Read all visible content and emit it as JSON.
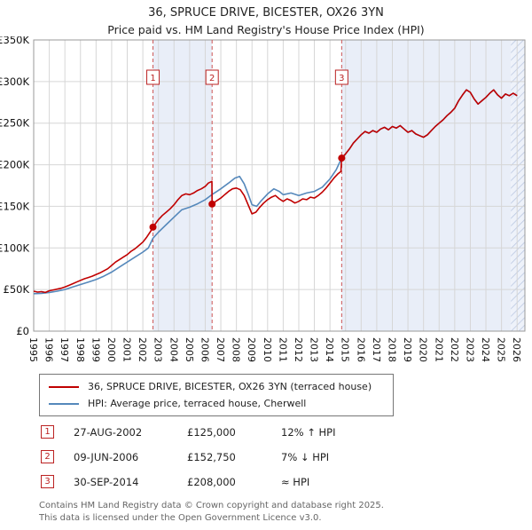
{
  "title": "36, SPRUCE DRIVE, BICESTER, OX26 3YN",
  "subtitle": "Price paid vs. HM Land Registry's House Price Index (HPI)",
  "legend": {
    "entries": [
      {
        "label": "36, SPRUCE DRIVE, BICESTER, OX26 3YN (terraced house)",
        "color": "#c00000"
      },
      {
        "label": "HPI: Average price, terraced house, Cherwell",
        "color": "#5588bb"
      }
    ]
  },
  "transactions": [
    {
      "num": "1",
      "date": "27-AUG-2002",
      "price": "£125,000",
      "hpi": "12% ↑ HPI"
    },
    {
      "num": "2",
      "date": "09-JUN-2006",
      "price": "£152,750",
      "hpi": "7% ↓ HPI"
    },
    {
      "num": "3",
      "date": "30-SEP-2014",
      "price": "£208,000",
      "hpi": "≈ HPI"
    }
  ],
  "footer": [
    "Contains HM Land Registry data © Crown copyright and database right 2025.",
    "This data is licensed under the Open Government Licence v3.0."
  ],
  "chart_data": {
    "type": "line",
    "title": "Price paid vs. HPI",
    "xlabel": "Year",
    "ylabel": "Price",
    "xlim": [
      1995,
      2026.5
    ],
    "ylim": [
      0,
      350000
    ],
    "grid": true,
    "legend_position": "below",
    "x_ticks": [
      1995,
      1996,
      1997,
      1998,
      1999,
      2000,
      2001,
      2002,
      2003,
      2004,
      2005,
      2006,
      2007,
      2008,
      2009,
      2010,
      2011,
      2012,
      2013,
      2014,
      2015,
      2016,
      2017,
      2018,
      2019,
      2020,
      2021,
      2022,
      2023,
      2024,
      2025,
      2026
    ],
    "y_ticks": [
      {
        "v": 0,
        "label": "£0"
      },
      {
        "v": 50000,
        "label": "£50K"
      },
      {
        "v": 100000,
        "label": "£100K"
      },
      {
        "v": 150000,
        "label": "£150K"
      },
      {
        "v": 200000,
        "label": "£200K"
      },
      {
        "v": 250000,
        "label": "£250K"
      },
      {
        "v": 300000,
        "label": "£300K"
      },
      {
        "v": 350000,
        "label": "£350K"
      }
    ],
    "bands": [
      {
        "x0": 2002.65,
        "x1": 2006.44,
        "color": "#e9eef8"
      },
      {
        "x0": 2014.75,
        "x1": 2025.6,
        "color": "#e9eef8"
      }
    ],
    "hatch_band": {
      "x0": 2025.6,
      "x1": 2026.5
    },
    "markers": [
      {
        "n": "1",
        "x": 2002.65,
        "y": 125000
      },
      {
        "n": "2",
        "x": 2006.44,
        "y": 152750
      },
      {
        "n": "3",
        "x": 2014.75,
        "y": 208000
      }
    ],
    "marker_line_color": "#cc5555",
    "series": [
      {
        "name": "HPI: Average price, terraced house, Cherwell",
        "color": "#5588bb",
        "points": [
          [
            1995.0,
            45000
          ],
          [
            1995.5,
            45500
          ],
          [
            1996.0,
            46500
          ],
          [
            1996.5,
            48000
          ],
          [
            1997.0,
            50000
          ],
          [
            1997.5,
            53000
          ],
          [
            1998.0,
            56000
          ],
          [
            1998.5,
            59000
          ],
          [
            1999.0,
            62000
          ],
          [
            1999.5,
            66000
          ],
          [
            2000.0,
            71000
          ],
          [
            2000.5,
            77000
          ],
          [
            2001.0,
            83000
          ],
          [
            2001.5,
            89000
          ],
          [
            2002.0,
            95000
          ],
          [
            2002.35,
            100000
          ],
          [
            2002.65,
            111600
          ],
          [
            2003.0,
            119000
          ],
          [
            2003.5,
            128000
          ],
          [
            2004.0,
            137000
          ],
          [
            2004.5,
            146000
          ],
          [
            2005.0,
            149000
          ],
          [
            2005.5,
            153000
          ],
          [
            2006.0,
            158000
          ],
          [
            2006.44,
            164200
          ],
          [
            2006.75,
            168000
          ],
          [
            2007.0,
            171000
          ],
          [
            2007.5,
            178000
          ],
          [
            2007.9,
            184000
          ],
          [
            2008.2,
            186000
          ],
          [
            2008.5,
            177000
          ],
          [
            2008.75,
            165000
          ],
          [
            2009.0,
            152000
          ],
          [
            2009.3,
            150000
          ],
          [
            2009.6,
            157000
          ],
          [
            2010.0,
            165000
          ],
          [
            2010.4,
            171000
          ],
          [
            2010.75,
            168000
          ],
          [
            2011.0,
            164000
          ],
          [
            2011.5,
            166000
          ],
          [
            2012.0,
            163000
          ],
          [
            2012.5,
            166000
          ],
          [
            2013.0,
            168000
          ],
          [
            2013.5,
            173000
          ],
          [
            2014.0,
            183000
          ],
          [
            2014.4,
            194000
          ],
          [
            2014.75,
            208000
          ],
          [
            2015.0,
            213000
          ],
          [
            2015.25,
            219000
          ],
          [
            2015.5,
            226000
          ],
          [
            2015.75,
            231000
          ],
          [
            2016.0,
            236000
          ],
          [
            2016.25,
            240000
          ],
          [
            2016.5,
            238000
          ],
          [
            2016.75,
            241000
          ],
          [
            2017.0,
            239000
          ],
          [
            2017.25,
            243000
          ],
          [
            2017.5,
            245000
          ],
          [
            2017.75,
            242000
          ],
          [
            2018.0,
            246000
          ],
          [
            2018.25,
            244000
          ],
          [
            2018.5,
            247000
          ],
          [
            2018.75,
            243000
          ],
          [
            2019.0,
            239000
          ],
          [
            2019.25,
            241000
          ],
          [
            2019.5,
            237000
          ],
          [
            2019.75,
            235000
          ],
          [
            2020.0,
            233000
          ],
          [
            2020.25,
            236000
          ],
          [
            2020.5,
            241000
          ],
          [
            2020.75,
            246000
          ],
          [
            2021.0,
            250000
          ],
          [
            2021.25,
            254000
          ],
          [
            2021.5,
            259000
          ],
          [
            2021.75,
            263000
          ],
          [
            2022.0,
            268000
          ],
          [
            2022.25,
            277000
          ],
          [
            2022.5,
            284000
          ],
          [
            2022.75,
            290000
          ],
          [
            2023.0,
            287000
          ],
          [
            2023.25,
            279000
          ],
          [
            2023.5,
            273000
          ],
          [
            2023.75,
            277000
          ],
          [
            2024.0,
            281000
          ],
          [
            2024.25,
            286000
          ],
          [
            2024.5,
            290000
          ],
          [
            2024.75,
            284000
          ],
          [
            2025.0,
            280000
          ],
          [
            2025.25,
            285000
          ],
          [
            2025.5,
            283000
          ],
          [
            2025.75,
            286000
          ],
          [
            2026.0,
            283000
          ]
        ]
      },
      {
        "name": "36, SPRUCE DRIVE, BICESTER, OX26 3YN (terraced house)",
        "color": "#c00000",
        "points": [
          [
            1995.0,
            48000
          ],
          [
            1995.25,
            47000
          ],
          [
            1995.5,
            47500
          ],
          [
            1995.75,
            46500
          ],
          [
            1996.0,
            48500
          ],
          [
            1996.25,
            49500
          ],
          [
            1996.5,
            50500
          ],
          [
            1996.75,
            51500
          ],
          [
            1997.0,
            53000
          ],
          [
            1997.25,
            55000
          ],
          [
            1997.5,
            57000
          ],
          [
            1997.75,
            59000
          ],
          [
            1998.0,
            61000
          ],
          [
            1998.25,
            63000
          ],
          [
            1998.5,
            64500
          ],
          [
            1998.75,
            66000
          ],
          [
            1999.0,
            68000
          ],
          [
            1999.25,
            70000
          ],
          [
            1999.5,
            72500
          ],
          [
            1999.75,
            75000
          ],
          [
            2000.0,
            79000
          ],
          [
            2000.25,
            83000
          ],
          [
            2000.5,
            86000
          ],
          [
            2000.75,
            89000
          ],
          [
            2001.0,
            92000
          ],
          [
            2001.25,
            96000
          ],
          [
            2001.5,
            99000
          ],
          [
            2001.75,
            103000
          ],
          [
            2002.0,
            107000
          ],
          [
            2002.25,
            113000
          ],
          [
            2002.5,
            120000
          ],
          [
            2002.65,
            125000
          ],
          [
            2003.0,
            134000
          ],
          [
            2003.25,
            139000
          ],
          [
            2003.5,
            143000
          ],
          [
            2003.75,
            147000
          ],
          [
            2004.0,
            152000
          ],
          [
            2004.25,
            158000
          ],
          [
            2004.5,
            163000
          ],
          [
            2004.75,
            165000
          ],
          [
            2005.0,
            164000
          ],
          [
            2005.25,
            166000
          ],
          [
            2005.5,
            169000
          ],
          [
            2005.75,
            171000
          ],
          [
            2006.0,
            174000
          ],
          [
            2006.2,
            178000
          ],
          [
            2006.43,
            180000
          ],
          [
            2006.44,
            152750
          ],
          [
            2006.75,
            157000
          ],
          [
            2007.0,
            160000
          ],
          [
            2007.25,
            164000
          ],
          [
            2007.5,
            168000
          ],
          [
            2007.75,
            171000
          ],
          [
            2008.0,
            172000
          ],
          [
            2008.25,
            170000
          ],
          [
            2008.5,
            163000
          ],
          [
            2008.75,
            152000
          ],
          [
            2009.0,
            141000
          ],
          [
            2009.25,
            143000
          ],
          [
            2009.5,
            149000
          ],
          [
            2009.75,
            154000
          ],
          [
            2010.0,
            158000
          ],
          [
            2010.25,
            161000
          ],
          [
            2010.5,
            163000
          ],
          [
            2010.75,
            159000
          ],
          [
            2011.0,
            156000
          ],
          [
            2011.25,
            159000
          ],
          [
            2011.5,
            157000
          ],
          [
            2011.75,
            154000
          ],
          [
            2012.0,
            156000
          ],
          [
            2012.25,
            159000
          ],
          [
            2012.5,
            158000
          ],
          [
            2012.75,
            161000
          ],
          [
            2013.0,
            160000
          ],
          [
            2013.25,
            163000
          ],
          [
            2013.5,
            167000
          ],
          [
            2013.75,
            172000
          ],
          [
            2014.0,
            178000
          ],
          [
            2014.25,
            184000
          ],
          [
            2014.5,
            189000
          ],
          [
            2014.7,
            192000
          ],
          [
            2014.75,
            208000
          ],
          [
            2015.0,
            213000
          ],
          [
            2015.25,
            219000
          ],
          [
            2015.5,
            226000
          ],
          [
            2015.75,
            231000
          ],
          [
            2016.0,
            236000
          ],
          [
            2016.25,
            240000
          ],
          [
            2016.5,
            238000
          ],
          [
            2016.75,
            241000
          ],
          [
            2017.0,
            239000
          ],
          [
            2017.25,
            243000
          ],
          [
            2017.5,
            245000
          ],
          [
            2017.75,
            242000
          ],
          [
            2018.0,
            246000
          ],
          [
            2018.25,
            244000
          ],
          [
            2018.5,
            247000
          ],
          [
            2018.75,
            243000
          ],
          [
            2019.0,
            239000
          ],
          [
            2019.25,
            241000
          ],
          [
            2019.5,
            237000
          ],
          [
            2019.75,
            235000
          ],
          [
            2020.0,
            233000
          ],
          [
            2020.25,
            236000
          ],
          [
            2020.5,
            241000
          ],
          [
            2020.75,
            246000
          ],
          [
            2021.0,
            250000
          ],
          [
            2021.25,
            254000
          ],
          [
            2021.5,
            259000
          ],
          [
            2021.75,
            263000
          ],
          [
            2022.0,
            268000
          ],
          [
            2022.25,
            277000
          ],
          [
            2022.5,
            284000
          ],
          [
            2022.75,
            290000
          ],
          [
            2023.0,
            287000
          ],
          [
            2023.25,
            279000
          ],
          [
            2023.5,
            273000
          ],
          [
            2023.75,
            277000
          ],
          [
            2024.0,
            281000
          ],
          [
            2024.25,
            286000
          ],
          [
            2024.5,
            290000
          ],
          [
            2024.75,
            284000
          ],
          [
            2025.0,
            280000
          ],
          [
            2025.25,
            285000
          ],
          [
            2025.5,
            283000
          ],
          [
            2025.75,
            286000
          ],
          [
            2026.0,
            283000
          ]
        ]
      }
    ]
  }
}
